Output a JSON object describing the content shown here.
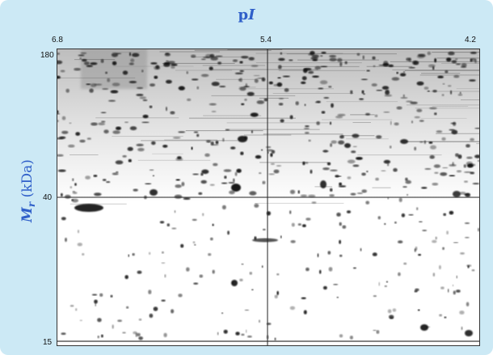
{
  "figure": {
    "x_axis": {
      "title_main": "p",
      "title_italic": "I",
      "ticks": [
        "6.8",
        "5.4",
        "4.2"
      ]
    },
    "y_axis": {
      "title_italic": "M",
      "title_sub": "r",
      "title_rest": " (kDa)",
      "ticks": [
        "180",
        "40",
        "15"
      ]
    },
    "reference_lines": {
      "pI": "5.4",
      "Mr": "40"
    },
    "colors": {
      "panel_background": "#cce9f5",
      "axis_title": "#2f5fc9",
      "gel_background": "#ffffff",
      "spot": "#111111"
    }
  }
}
